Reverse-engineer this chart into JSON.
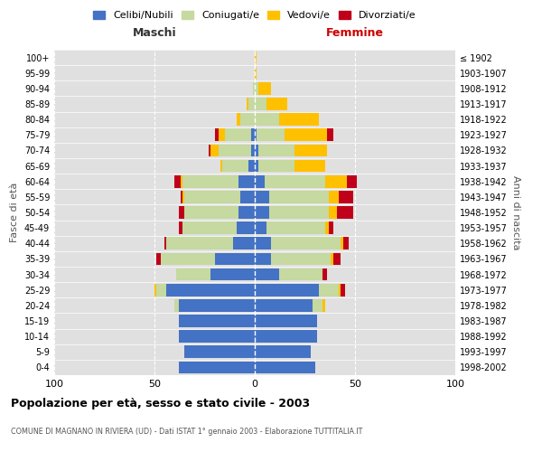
{
  "age_groups": [
    "0-4",
    "5-9",
    "10-14",
    "15-19",
    "20-24",
    "25-29",
    "30-34",
    "35-39",
    "40-44",
    "45-49",
    "50-54",
    "55-59",
    "60-64",
    "65-69",
    "70-74",
    "75-79",
    "80-84",
    "85-89",
    "90-94",
    "95-99",
    "100+"
  ],
  "birth_years": [
    "1998-2002",
    "1993-1997",
    "1988-1992",
    "1983-1987",
    "1978-1982",
    "1973-1977",
    "1968-1972",
    "1963-1967",
    "1958-1962",
    "1953-1957",
    "1948-1952",
    "1943-1947",
    "1938-1942",
    "1933-1937",
    "1928-1932",
    "1923-1927",
    "1918-1922",
    "1913-1917",
    "1908-1912",
    "1903-1907",
    "≤ 1902"
  ],
  "males": {
    "celibi": [
      38,
      35,
      38,
      38,
      38,
      44,
      22,
      20,
      11,
      9,
      8,
      7,
      8,
      3,
      2,
      2,
      0,
      0,
      0,
      0,
      0
    ],
    "coniugati": [
      0,
      0,
      0,
      0,
      2,
      5,
      17,
      27,
      33,
      27,
      27,
      28,
      28,
      13,
      16,
      13,
      7,
      3,
      1,
      0,
      0
    ],
    "vedovi": [
      0,
      0,
      0,
      0,
      0,
      1,
      0,
      0,
      0,
      0,
      0,
      1,
      1,
      1,
      4,
      3,
      2,
      1,
      0,
      0,
      0
    ],
    "divorziati": [
      0,
      0,
      0,
      0,
      0,
      0,
      0,
      2,
      1,
      2,
      3,
      1,
      3,
      0,
      1,
      2,
      0,
      0,
      0,
      0,
      0
    ]
  },
  "females": {
    "nubili": [
      30,
      28,
      31,
      31,
      29,
      32,
      12,
      8,
      8,
      6,
      7,
      7,
      5,
      2,
      2,
      1,
      0,
      0,
      0,
      0,
      0
    ],
    "coniugate": [
      0,
      0,
      0,
      0,
      5,
      10,
      22,
      30,
      35,
      29,
      30,
      30,
      30,
      18,
      18,
      14,
      12,
      6,
      2,
      0,
      0
    ],
    "vedove": [
      0,
      0,
      0,
      0,
      1,
      1,
      0,
      1,
      1,
      2,
      4,
      5,
      11,
      15,
      16,
      21,
      20,
      10,
      6,
      1,
      1
    ],
    "divorziate": [
      0,
      0,
      0,
      0,
      0,
      2,
      2,
      4,
      3,
      2,
      8,
      7,
      5,
      0,
      0,
      3,
      0,
      0,
      0,
      0,
      0
    ]
  },
  "colors": {
    "celibi": "#4472c4",
    "coniugati": "#c5d9a0",
    "vedovi": "#ffc000",
    "divorziati": "#c0001a"
  },
  "title": "Popolazione per età, sesso e stato civile - 2003",
  "subtitle": "COMUNE DI MAGNANO IN RIVIERA (UD) - Dati ISTAT 1° gennaio 2003 - Elaborazione TUTTITALIA.IT",
  "xlim": 100,
  "legend_labels": [
    "Celibi/Nubili",
    "Coniugati/e",
    "Vedovi/e",
    "Divorziati/e"
  ],
  "ylabel_left": "Fasce di età",
  "ylabel_right": "Anni di nascita",
  "xlabel_left": "Maschi",
  "xlabel_right": "Femmine"
}
